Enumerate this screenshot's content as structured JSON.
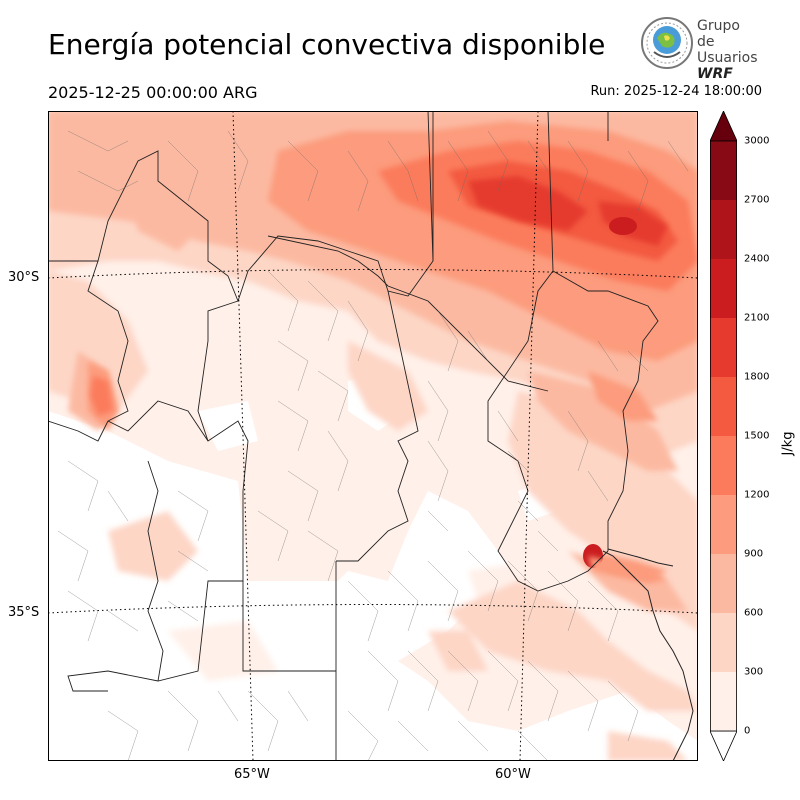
{
  "header": {
    "title": "Energía potencial convectiva disponible",
    "valid_time": "2025-12-25 00:00:00 ARG",
    "run_time": "Run: 2025-12-24 18:00:00"
  },
  "logo": {
    "line1": "Grupo de",
    "line2": "Usuarios",
    "line3": "WRF"
  },
  "map": {
    "variable": "CAPE",
    "lat_labels": [
      "30°S",
      "35°S"
    ],
    "lon_labels": [
      "65°W",
      "60°W"
    ]
  },
  "colorbar": {
    "unit": "J/kg",
    "levels": [
      "0",
      "300",
      "600",
      "900",
      "1200",
      "1500",
      "1800",
      "2100",
      "2400",
      "2700",
      "3000"
    ],
    "colors": [
      "#fff0e9",
      "#fdd6c6",
      "#fcb9a1",
      "#fc9b7d",
      "#fb7b5c",
      "#f35a40",
      "#e53a2d",
      "#cb1d1f",
      "#b0141b",
      "#870a14"
    ],
    "over_color": "#67000d",
    "under_color": "#ffffff"
  }
}
